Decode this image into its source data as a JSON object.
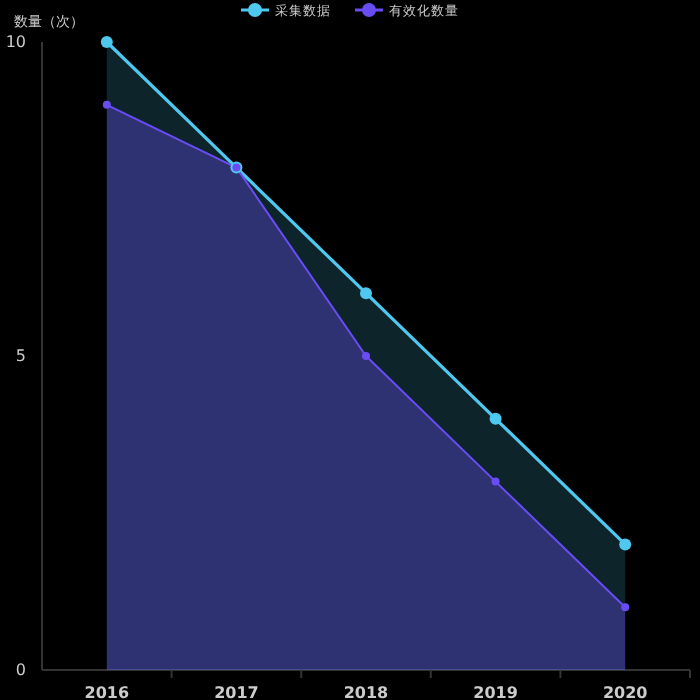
{
  "chart_data": {
    "type": "area",
    "ylabel": "数量（次）",
    "categories": [
      "2016",
      "2017",
      "2018",
      "2019",
      "2020"
    ],
    "series": [
      {
        "name": "采集数据",
        "color": "#4fc8f0",
        "values": [
          10,
          8,
          6,
          4,
          2
        ]
      },
      {
        "name": "有效化数量",
        "color": "#6a4cf5",
        "values": [
          9,
          8,
          5,
          3,
          1
        ]
      }
    ],
    "ylim": [
      0,
      10
    ],
    "yticks": [
      0,
      5,
      10
    ],
    "legend": "top",
    "marker": "circle"
  }
}
